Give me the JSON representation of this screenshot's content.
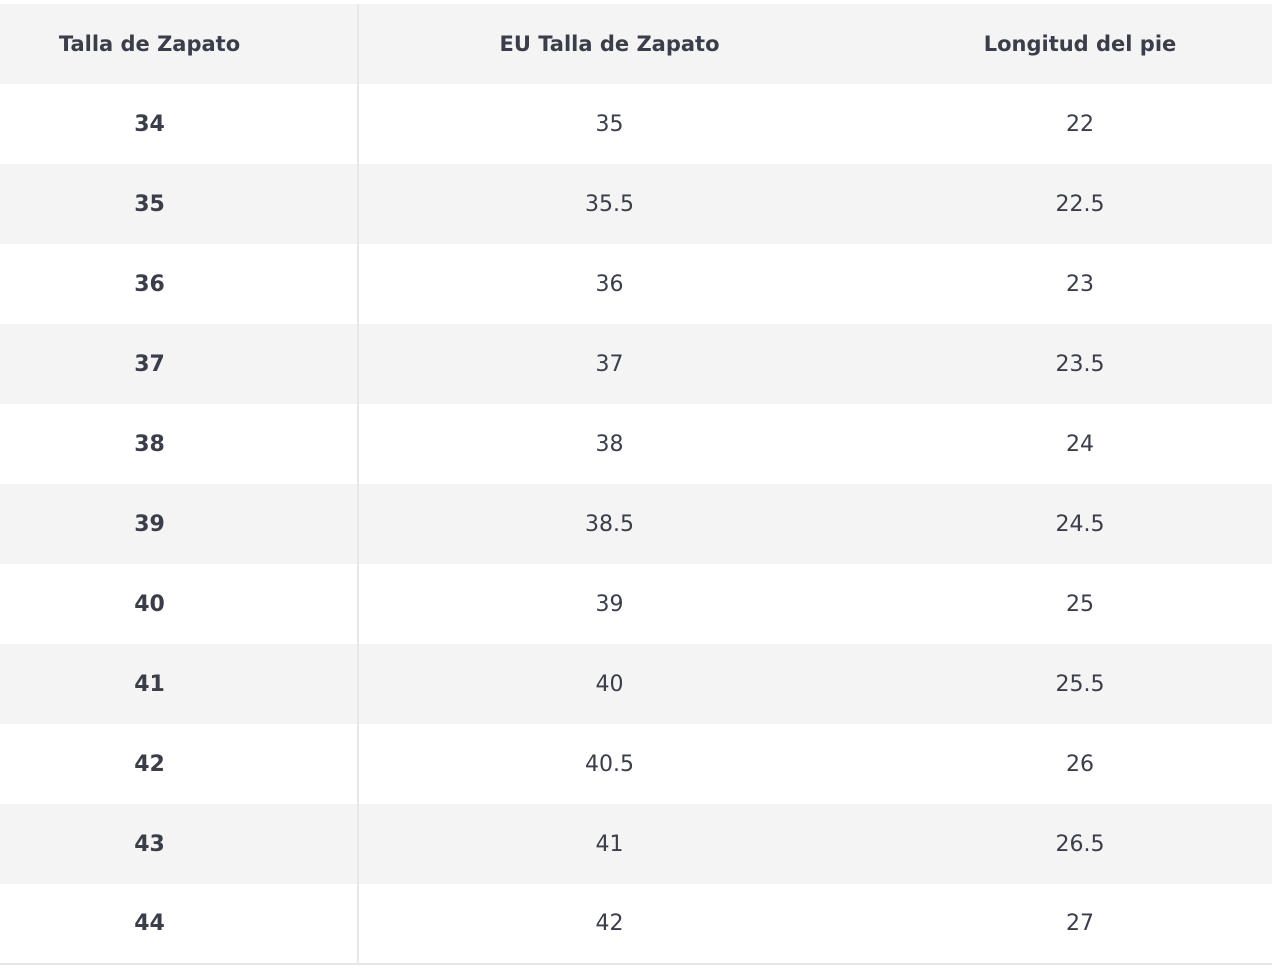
{
  "table": {
    "header": [
      "Talla de Zapato",
      "EU Talla de Zapato",
      "Longitud del pie"
    ],
    "rows": [
      [
        34,
        35,
        22
      ],
      [
        35,
        35.5,
        22.5
      ],
      [
        36,
        36,
        23
      ],
      [
        37,
        37,
        23.5
      ],
      [
        38,
        38,
        24
      ],
      [
        39,
        38.5,
        24.5
      ],
      [
        40,
        39,
        25
      ],
      [
        41,
        40,
        25.5
      ],
      [
        42,
        40.5,
        26
      ],
      [
        43,
        41,
        26.5
      ],
      [
        44,
        42,
        27
      ]
    ]
  }
}
